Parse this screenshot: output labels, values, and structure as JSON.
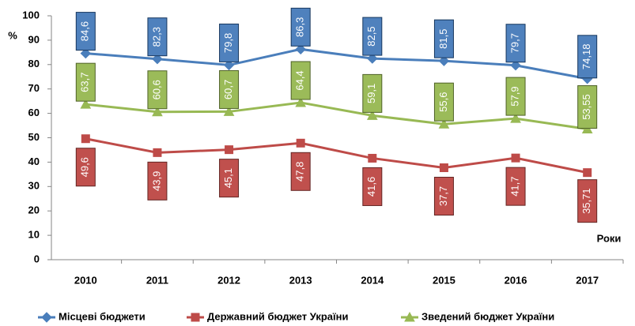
{
  "chart_data": {
    "type": "line",
    "y_label": "%",
    "x_label": "Роки",
    "categories": [
      "2010",
      "2011",
      "2012",
      "2013",
      "2014",
      "2015",
      "2016",
      "2017"
    ],
    "ylim": [
      0,
      100
    ],
    "yticks": [
      0,
      10,
      20,
      30,
      40,
      50,
      60,
      70,
      80,
      90,
      100
    ],
    "grid": false,
    "legend": "bottom",
    "series": [
      {
        "name": "Місцеві бюджети",
        "color": "#4a7ebb",
        "marker": "diamond",
        "values": [
          84.6,
          82.3,
          79.8,
          86.3,
          82.5,
          81.5,
          79.7,
          74.18
        ],
        "value_labels": [
          "84,6",
          "82,3",
          "79,8",
          "86,3",
          "82,5",
          "81,5",
          "79,7",
          "74,18"
        ]
      },
      {
        "name": "Державний бюджет України",
        "color": "#be4b48",
        "marker": "square",
        "values": [
          49.6,
          43.9,
          45.1,
          47.8,
          41.6,
          37.7,
          41.7,
          35.71
        ],
        "value_labels": [
          "49,6",
          "43,9",
          "45,1",
          "47,8",
          "41,6",
          "37,7",
          "41,7",
          "35,71"
        ]
      },
      {
        "name": "Зведений бюджет України",
        "color": "#98b954",
        "marker": "triangle",
        "values": [
          63.7,
          60.6,
          60.7,
          64.4,
          59.1,
          55.6,
          57.9,
          53.55
        ],
        "value_labels": [
          "63,7",
          "60,6",
          "60,7",
          "64,4",
          "59,1",
          "55,6",
          "57,9",
          "53,55"
        ]
      }
    ]
  }
}
